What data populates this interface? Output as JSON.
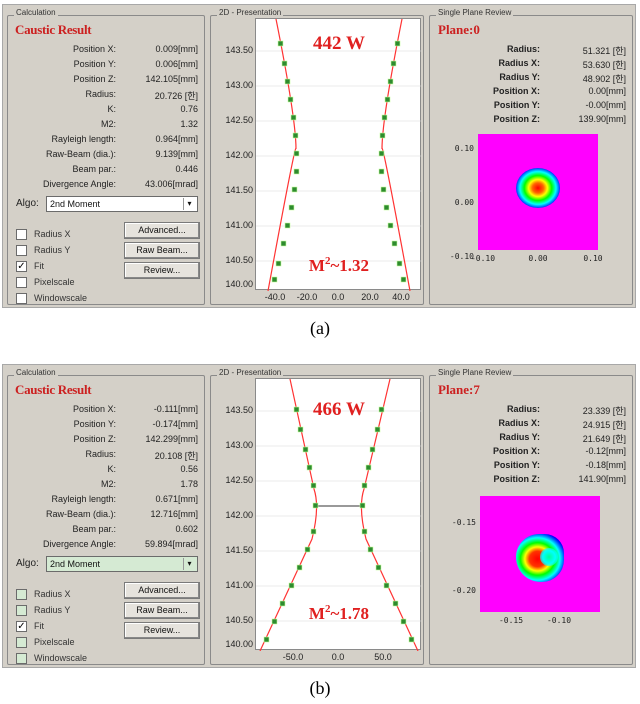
{
  "panels": [
    {
      "id": "a",
      "caption": "(a)",
      "calculation": {
        "group_title": "Calculation",
        "result_title": "Caustic Result",
        "rows": [
          {
            "label": "Position X:",
            "value": "0.009[mm]"
          },
          {
            "label": "Position Y:",
            "value": "0.006[mm]"
          },
          {
            "label": "Position Z:",
            "value": "142.105[mm]"
          },
          {
            "label": "Radius:",
            "value": "20.726 [한]"
          },
          {
            "label": "K:",
            "value": "0.76"
          },
          {
            "label": "M2:",
            "value": "1.32"
          },
          {
            "label": "Rayleigh length:",
            "value": "0.964[mm]"
          },
          {
            "label": "Raw-Beam (dia.):",
            "value": "9.139[mm]"
          },
          {
            "label": "Beam par.:",
            "value": "0.446"
          },
          {
            "label": "Divergence Angle:",
            "value": "43.006[mrad]"
          }
        ],
        "algo_label": "Algo:",
        "algo_value": "2nd Moment",
        "checkboxes": [
          {
            "label": "Radius X",
            "checked": false
          },
          {
            "label": "Radius Y",
            "checked": false
          },
          {
            "label": "Fit",
            "checked": true
          },
          {
            "label": "Pixelscale",
            "checked": false
          },
          {
            "label": "Windowscale",
            "checked": false
          }
        ],
        "buttons": [
          "Advanced...",
          "Raw Beam...",
          "Review..."
        ]
      },
      "presentation": {
        "group_title": "2D - Presentation",
        "power_label": "442 W",
        "m2_prefix": "M",
        "m2_sup": "2",
        "m2_suffix": "~1.32",
        "y_ticks": [
          "143.50",
          "143.00",
          "142.50",
          "142.00",
          "141.50",
          "141.00",
          "140.50",
          "140.00"
        ],
        "x_ticks": [
          "-40.0",
          "-20.0",
          "0.0",
          "20.0",
          "40.0"
        ]
      },
      "plane": {
        "group_title": "Single Plane Review",
        "plane_title": "Plane:0",
        "rows": [
          {
            "label": "Radius:",
            "value": "51.321 [한]"
          },
          {
            "label": "Radius X:",
            "value": "53.630 [한]"
          },
          {
            "label": "Radius Y:",
            "value": "48.902 [한]"
          },
          {
            "label": "Position X:",
            "value": "0.00[mm]"
          },
          {
            "label": "Position Y:",
            "value": "-0.00[mm]"
          },
          {
            "label": "Position Z:",
            "value": "139.90[mm]"
          }
        ],
        "y_ticks": [
          "0.10",
          "0.00",
          "-0.10"
        ],
        "x_ticks": [
          "-0.10",
          "0.00",
          "0.10"
        ]
      }
    },
    {
      "id": "b",
      "caption": "(b)",
      "calculation": {
        "group_title": "Calculation",
        "result_title": "Caustic Result",
        "rows": [
          {
            "label": "Position X:",
            "value": "-0.111[mm]"
          },
          {
            "label": "Position Y:",
            "value": "-0.174[mm]"
          },
          {
            "label": "Position Z:",
            "value": "142.299[mm]"
          },
          {
            "label": "Radius:",
            "value": "20.108 [한]"
          },
          {
            "label": "K:",
            "value": "0.56"
          },
          {
            "label": "M2:",
            "value": "1.78"
          },
          {
            "label": "Rayleigh length:",
            "value": "0.671[mm]"
          },
          {
            "label": "Raw-Beam (dia.):",
            "value": "12.716[mm]"
          },
          {
            "label": "Beam par.:",
            "value": "0.602"
          },
          {
            "label": "Divergence Angle:",
            "value": "59.894[mrad]"
          }
        ],
        "algo_label": "Algo:",
        "algo_value": "2nd Moment",
        "checkboxes": [
          {
            "label": "Radius X",
            "checked": false
          },
          {
            "label": "Radius Y",
            "checked": false
          },
          {
            "label": "Fit",
            "checked": true
          },
          {
            "label": "Pixelscale",
            "checked": false
          },
          {
            "label": "Windowscale",
            "checked": false
          }
        ],
        "buttons": [
          "Advanced...",
          "Raw Beam...",
          "Review..."
        ]
      },
      "presentation": {
        "group_title": "2D - Presentation",
        "power_label": "466 W",
        "m2_prefix": "M",
        "m2_sup": "2",
        "m2_suffix": "~1.78",
        "y_ticks": [
          "143.50",
          "143.00",
          "142.50",
          "142.00",
          "141.50",
          "141.00",
          "140.50",
          "140.00"
        ],
        "x_ticks": [
          "-50.0",
          "0.0",
          "50.0"
        ]
      },
      "plane": {
        "group_title": "Single Plane Review",
        "plane_title": "Plane:7",
        "rows": [
          {
            "label": "Radius:",
            "value": "23.339 [한]"
          },
          {
            "label": "Radius X:",
            "value": "24.915 [한]"
          },
          {
            "label": "Radius Y:",
            "value": "21.649 [한]"
          },
          {
            "label": "Position X:",
            "value": "-0.12[mm]"
          },
          {
            "label": "Position Y:",
            "value": "-0.18[mm]"
          },
          {
            "label": "Position Z:",
            "value": "141.90[mm]"
          }
        ],
        "y_ticks": [
          "-0.15",
          "-0.20"
        ],
        "x_ticks": [
          "-0.15",
          "-0.10"
        ]
      }
    }
  ],
  "colors": {
    "window_bg": "#d4d0c8",
    "title_red": "#cc2020",
    "fit_line": "#ff3333",
    "marker": "#2e8b2e",
    "heatmap_bg": "#ff00ff"
  }
}
